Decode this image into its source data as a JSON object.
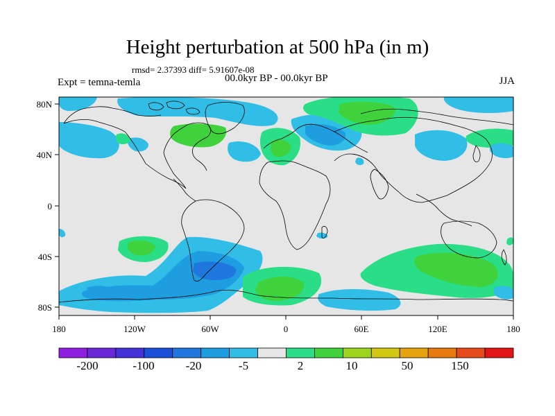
{
  "header": {
    "title": "Height perturbation at 500 hPa (in m)",
    "stats": "rmsd= 2.37393 diff= 5.91607e-08",
    "expt": "Expt = temna-temla",
    "period": "00.0kyr BP - 00.0kyr BP",
    "season": "JJA"
  },
  "axes": {
    "x_ticks": [
      "180",
      "120W",
      "60W",
      "0",
      "60E",
      "120E",
      "180"
    ],
    "y_ticks": [
      "80N",
      "40N",
      "0",
      "40S",
      "80S"
    ]
  },
  "colorbar": {
    "colors": [
      "#8f1fe0",
      "#6a28d8",
      "#4432d8",
      "#1b4fd9",
      "#1f77de",
      "#1e9de0",
      "#31bee6",
      "#e6e6e6",
      "#29de86",
      "#3fd23c",
      "#9cd41e",
      "#d2c814",
      "#e6a30e",
      "#e67a10",
      "#e6491a",
      "#e01616"
    ],
    "labels": [
      "-200",
      "-100",
      "-20",
      "-5",
      "2",
      "10",
      "50",
      "150"
    ]
  },
  "map_colors": {
    "background": "#e6e6e6",
    "light_blue": "#31bee6",
    "mid_blue": "#1e9de0",
    "dark_blue": "#1f77de",
    "light_green": "#29de86",
    "green": "#3fd23c",
    "coast": "#000000"
  }
}
